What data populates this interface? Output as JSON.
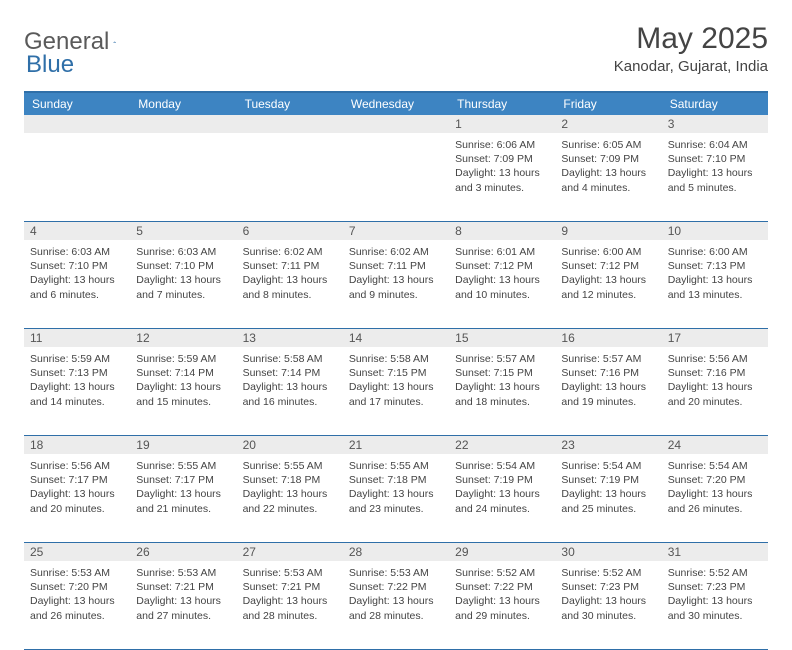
{
  "logo": {
    "text1": "General",
    "text2": "Blue"
  },
  "title": "May 2025",
  "location": "Kanodar, Gujarat, India",
  "colors": {
    "header_bg": "#3d84c2",
    "header_text": "#ffffff",
    "border": "#2f6fa8",
    "date_bg": "#ececec",
    "text": "#444444"
  },
  "day_names": [
    "Sunday",
    "Monday",
    "Tuesday",
    "Wednesday",
    "Thursday",
    "Friday",
    "Saturday"
  ],
  "weeks": [
    [
      {
        "date": "",
        "sunrise": "",
        "sunset": "",
        "daylight": ""
      },
      {
        "date": "",
        "sunrise": "",
        "sunset": "",
        "daylight": ""
      },
      {
        "date": "",
        "sunrise": "",
        "sunset": "",
        "daylight": ""
      },
      {
        "date": "",
        "sunrise": "",
        "sunset": "",
        "daylight": ""
      },
      {
        "date": "1",
        "sunrise": "Sunrise: 6:06 AM",
        "sunset": "Sunset: 7:09 PM",
        "daylight": "Daylight: 13 hours and 3 minutes."
      },
      {
        "date": "2",
        "sunrise": "Sunrise: 6:05 AM",
        "sunset": "Sunset: 7:09 PM",
        "daylight": "Daylight: 13 hours and 4 minutes."
      },
      {
        "date": "3",
        "sunrise": "Sunrise: 6:04 AM",
        "sunset": "Sunset: 7:10 PM",
        "daylight": "Daylight: 13 hours and 5 minutes."
      }
    ],
    [
      {
        "date": "4",
        "sunrise": "Sunrise: 6:03 AM",
        "sunset": "Sunset: 7:10 PM",
        "daylight": "Daylight: 13 hours and 6 minutes."
      },
      {
        "date": "5",
        "sunrise": "Sunrise: 6:03 AM",
        "sunset": "Sunset: 7:10 PM",
        "daylight": "Daylight: 13 hours and 7 minutes."
      },
      {
        "date": "6",
        "sunrise": "Sunrise: 6:02 AM",
        "sunset": "Sunset: 7:11 PM",
        "daylight": "Daylight: 13 hours and 8 minutes."
      },
      {
        "date": "7",
        "sunrise": "Sunrise: 6:02 AM",
        "sunset": "Sunset: 7:11 PM",
        "daylight": "Daylight: 13 hours and 9 minutes."
      },
      {
        "date": "8",
        "sunrise": "Sunrise: 6:01 AM",
        "sunset": "Sunset: 7:12 PM",
        "daylight": "Daylight: 13 hours and 10 minutes."
      },
      {
        "date": "9",
        "sunrise": "Sunrise: 6:00 AM",
        "sunset": "Sunset: 7:12 PM",
        "daylight": "Daylight: 13 hours and 12 minutes."
      },
      {
        "date": "10",
        "sunrise": "Sunrise: 6:00 AM",
        "sunset": "Sunset: 7:13 PM",
        "daylight": "Daylight: 13 hours and 13 minutes."
      }
    ],
    [
      {
        "date": "11",
        "sunrise": "Sunrise: 5:59 AM",
        "sunset": "Sunset: 7:13 PM",
        "daylight": "Daylight: 13 hours and 14 minutes."
      },
      {
        "date": "12",
        "sunrise": "Sunrise: 5:59 AM",
        "sunset": "Sunset: 7:14 PM",
        "daylight": "Daylight: 13 hours and 15 minutes."
      },
      {
        "date": "13",
        "sunrise": "Sunrise: 5:58 AM",
        "sunset": "Sunset: 7:14 PM",
        "daylight": "Daylight: 13 hours and 16 minutes."
      },
      {
        "date": "14",
        "sunrise": "Sunrise: 5:58 AM",
        "sunset": "Sunset: 7:15 PM",
        "daylight": "Daylight: 13 hours and 17 minutes."
      },
      {
        "date": "15",
        "sunrise": "Sunrise: 5:57 AM",
        "sunset": "Sunset: 7:15 PM",
        "daylight": "Daylight: 13 hours and 18 minutes."
      },
      {
        "date": "16",
        "sunrise": "Sunrise: 5:57 AM",
        "sunset": "Sunset: 7:16 PM",
        "daylight": "Daylight: 13 hours and 19 minutes."
      },
      {
        "date": "17",
        "sunrise": "Sunrise: 5:56 AM",
        "sunset": "Sunset: 7:16 PM",
        "daylight": "Daylight: 13 hours and 20 minutes."
      }
    ],
    [
      {
        "date": "18",
        "sunrise": "Sunrise: 5:56 AM",
        "sunset": "Sunset: 7:17 PM",
        "daylight": "Daylight: 13 hours and 20 minutes."
      },
      {
        "date": "19",
        "sunrise": "Sunrise: 5:55 AM",
        "sunset": "Sunset: 7:17 PM",
        "daylight": "Daylight: 13 hours and 21 minutes."
      },
      {
        "date": "20",
        "sunrise": "Sunrise: 5:55 AM",
        "sunset": "Sunset: 7:18 PM",
        "daylight": "Daylight: 13 hours and 22 minutes."
      },
      {
        "date": "21",
        "sunrise": "Sunrise: 5:55 AM",
        "sunset": "Sunset: 7:18 PM",
        "daylight": "Daylight: 13 hours and 23 minutes."
      },
      {
        "date": "22",
        "sunrise": "Sunrise: 5:54 AM",
        "sunset": "Sunset: 7:19 PM",
        "daylight": "Daylight: 13 hours and 24 minutes."
      },
      {
        "date": "23",
        "sunrise": "Sunrise: 5:54 AM",
        "sunset": "Sunset: 7:19 PM",
        "daylight": "Daylight: 13 hours and 25 minutes."
      },
      {
        "date": "24",
        "sunrise": "Sunrise: 5:54 AM",
        "sunset": "Sunset: 7:20 PM",
        "daylight": "Daylight: 13 hours and 26 minutes."
      }
    ],
    [
      {
        "date": "25",
        "sunrise": "Sunrise: 5:53 AM",
        "sunset": "Sunset: 7:20 PM",
        "daylight": "Daylight: 13 hours and 26 minutes."
      },
      {
        "date": "26",
        "sunrise": "Sunrise: 5:53 AM",
        "sunset": "Sunset: 7:21 PM",
        "daylight": "Daylight: 13 hours and 27 minutes."
      },
      {
        "date": "27",
        "sunrise": "Sunrise: 5:53 AM",
        "sunset": "Sunset: 7:21 PM",
        "daylight": "Daylight: 13 hours and 28 minutes."
      },
      {
        "date": "28",
        "sunrise": "Sunrise: 5:53 AM",
        "sunset": "Sunset: 7:22 PM",
        "daylight": "Daylight: 13 hours and 28 minutes."
      },
      {
        "date": "29",
        "sunrise": "Sunrise: 5:52 AM",
        "sunset": "Sunset: 7:22 PM",
        "daylight": "Daylight: 13 hours and 29 minutes."
      },
      {
        "date": "30",
        "sunrise": "Sunrise: 5:52 AM",
        "sunset": "Sunset: 7:23 PM",
        "daylight": "Daylight: 13 hours and 30 minutes."
      },
      {
        "date": "31",
        "sunrise": "Sunrise: 5:52 AM",
        "sunset": "Sunset: 7:23 PM",
        "daylight": "Daylight: 13 hours and 30 minutes."
      }
    ]
  ]
}
